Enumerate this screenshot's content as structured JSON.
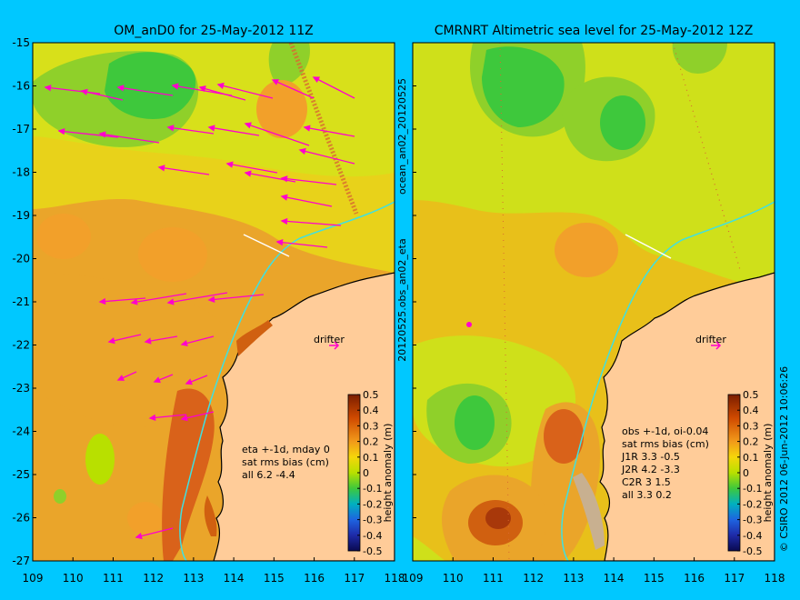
{
  "left_panel": {
    "title": "OM_anD0 for 25-May-2012 11Z",
    "notes": [
      "eta +-1d, mday 0",
      "sat rms bias (cm)",
      "all 6.2 -4.4"
    ],
    "drifter_label": "drifter"
  },
  "right_panel": {
    "title": "CMRNRT Altimetric sea level  for 25-May-2012 12Z",
    "notes": [
      "obs +-1d, oi-0.04",
      "sat rms bias (cm)",
      "J1R  3.3 -0.5",
      "J2R  4.2 -3.3",
      "C2R   3 1.5",
      "all 3.3 0.2"
    ],
    "drifter_label": "drifter"
  },
  "axes": {
    "x_ticks": [
      "109",
      "110",
      "111",
      "112",
      "113",
      "114",
      "115",
      "116",
      "117",
      "118"
    ],
    "y_ticks": [
      "-15",
      "-16",
      "-17",
      "-18",
      "-19",
      "-20",
      "-21",
      "-22",
      "-23",
      "-24",
      "-25",
      "-26",
      "-27"
    ]
  },
  "colorbar": {
    "ticks": [
      "0.5",
      "0.4",
      "0.3",
      "0.2",
      "0.1",
      "0",
      "-0.1",
      "-0.2",
      "-0.3",
      "-0.4",
      "-0.5"
    ],
    "label": "height anomaly (m)"
  },
  "side_labels": {
    "left": "20120525.obs_an02_eta",
    "left_top": "ocean_an02_20120525",
    "right": "© CSIRO 2012  06-Jun-2012 10:06:26"
  },
  "colors": {
    "background": "#00c8ff",
    "land": "#ffcc99",
    "arrows": "#ff00cc",
    "coast_line": "#000000",
    "track": "#40e0e0"
  }
}
